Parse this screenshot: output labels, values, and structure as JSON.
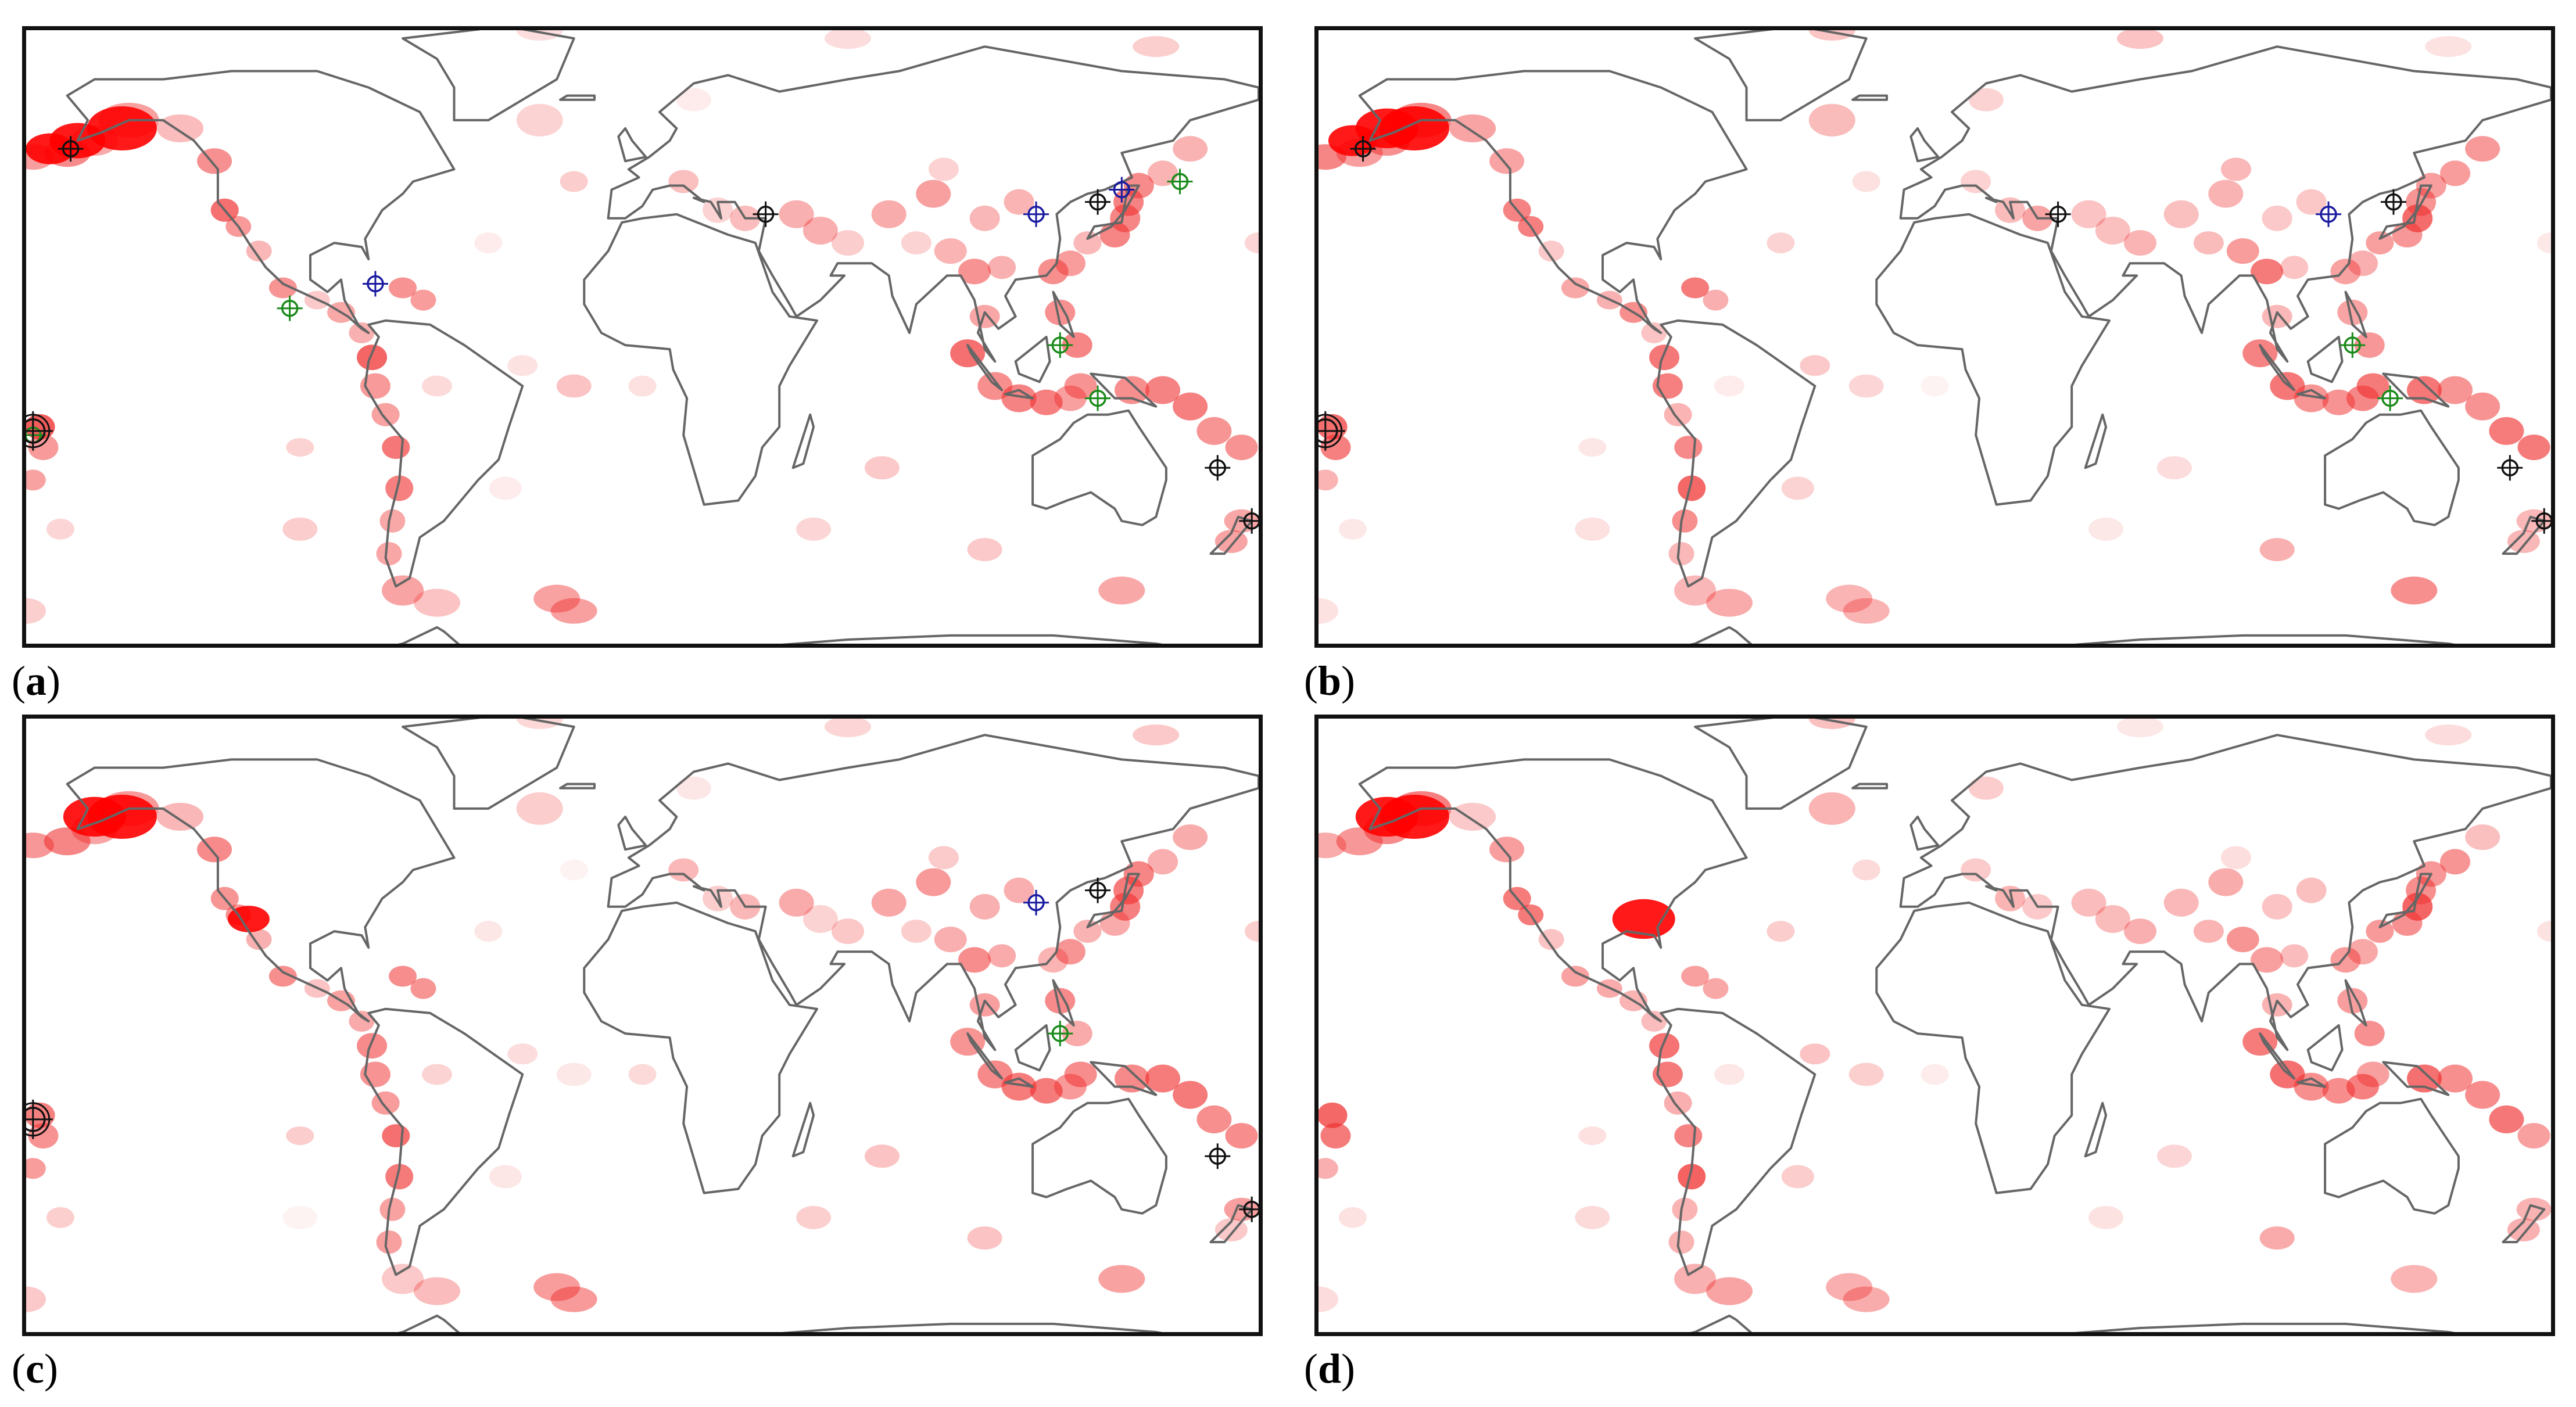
{
  "panels": [
    {
      "id": "a",
      "label": "a",
      "scale": 1.0,
      "blue_markers": [
        [
          -78,
          20
        ],
        [
          115,
          37
        ],
        [
          140,
          43
        ]
      ],
      "green_markers": [
        [
          -103,
          14
        ],
        [
          157,
          45
        ],
        [
          122,
          5
        ],
        [
          133,
          -8
        ],
        [
          -178,
          -17
        ]
      ],
      "black_markers": [
        [
          -167,
          53
        ],
        [
          36,
          37
        ],
        [
          133,
          40
        ],
        [
          168,
          -25
        ],
        [
          -178,
          -16
        ],
        [
          178,
          -38
        ]
      ],
      "hot_spots": [
        [
          -152,
          58,
          1.0
        ],
        [
          -165,
          55,
          0.8
        ],
        [
          -173,
          53,
          0.7
        ]
      ]
    },
    {
      "id": "b",
      "label": "b",
      "scale": 1.0,
      "blue_markers": [
        [
          115,
          37
        ]
      ],
      "green_markers": [
        [
          122,
          5
        ],
        [
          133,
          -8
        ]
      ],
      "black_markers": [
        [
          -167,
          53
        ],
        [
          36,
          37
        ],
        [
          134,
          40
        ],
        [
          168,
          -25
        ],
        [
          -178,
          -16
        ],
        [
          178,
          -38
        ]
      ],
      "hot_spots": [
        [
          -152,
          58,
          1.0
        ],
        [
          -160,
          58,
          0.9
        ],
        [
          -170,
          55,
          0.7
        ]
      ]
    },
    {
      "id": "c",
      "label": "c",
      "scale": 1.0,
      "blue_markers": [
        [
          115,
          37
        ]
      ],
      "green_markers": [
        [
          122,
          5
        ]
      ],
      "black_markers": [
        [
          133,
          40
        ],
        [
          168,
          -25
        ],
        [
          -178,
          -16
        ],
        [
          178,
          -38
        ]
      ],
      "hot_spots": [
        [
          -152,
          58,
          1.0
        ],
        [
          -160,
          58,
          0.9
        ],
        [
          -115,
          33,
          0.6
        ]
      ]
    },
    {
      "id": "d",
      "label": "d",
      "scale": 1.0,
      "blue_markers": [],
      "green_markers": [],
      "black_markers": [],
      "hot_spots": [
        [
          -152,
          58,
          1.0
        ],
        [
          -160,
          58,
          0.9
        ],
        [
          -85,
          33,
          0.9
        ]
      ]
    }
  ],
  "colors": {
    "land_outline": "#666666",
    "event": "#f03030",
    "marker_blue": "#1a1aa0",
    "marker_green": "#1a8a1a",
    "marker_black": "#111111"
  }
}
